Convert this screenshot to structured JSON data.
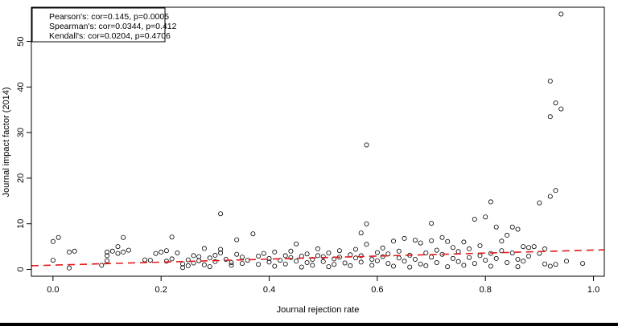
{
  "chart_data": {
    "type": "scatter",
    "xlabel": "Journal rejection rate",
    "ylabel": "Journal impact factor (2014)",
    "xlim": [
      -0.04,
      1.02
    ],
    "ylim": [
      -1.5,
      57.5
    ],
    "xticks": [
      0.0,
      0.2,
      0.4,
      0.6,
      0.8,
      1.0
    ],
    "xtick_labels": [
      "0.0",
      "0.2",
      "0.4",
      "0.6",
      "0.8",
      "1.0"
    ],
    "yticks": [
      0,
      10,
      20,
      30,
      40,
      50
    ],
    "ytick_labels": [
      "0",
      "10",
      "20",
      "30",
      "40",
      "50"
    ],
    "legend_position": "top-left",
    "legend": [
      "Pearson's: cor=0.145, p=0.0005",
      "Spearman's: cor=0.0344, p=0.412",
      "Kendall's: cor=0.0204, p=0.4706"
    ],
    "fit_line": {
      "style": "dashed",
      "color": "#e31a1c",
      "x": [
        -0.04,
        1.02
      ],
      "y": [
        0.8,
        4.3
      ]
    },
    "points": [
      [
        0.0,
        6.1
      ],
      [
        0.01,
        7.0
      ],
      [
        0.0,
        2.0
      ],
      [
        0.03,
        3.8
      ],
      [
        0.04,
        4.0
      ],
      [
        0.03,
        0.3
      ],
      [
        0.09,
        0.9
      ],
      [
        0.1,
        1.9
      ],
      [
        0.1,
        3.0
      ],
      [
        0.1,
        3.8
      ],
      [
        0.11,
        4.0
      ],
      [
        0.12,
        5.0
      ],
      [
        0.12,
        3.5
      ],
      [
        0.13,
        3.8
      ],
      [
        0.13,
        7.0
      ],
      [
        0.14,
        4.2
      ],
      [
        0.17,
        2.1
      ],
      [
        0.18,
        2.0
      ],
      [
        0.19,
        3.5
      ],
      [
        0.2,
        3.8
      ],
      [
        0.21,
        1.8
      ],
      [
        0.21,
        4.1
      ],
      [
        0.22,
        7.1
      ],
      [
        0.22,
        2.3
      ],
      [
        0.23,
        3.6
      ],
      [
        0.24,
        1.2
      ],
      [
        0.24,
        0.4
      ],
      [
        0.25,
        0.8
      ],
      [
        0.25,
        2.1
      ],
      [
        0.26,
        1.4
      ],
      [
        0.26,
        3.0
      ],
      [
        0.27,
        1.9
      ],
      [
        0.27,
        2.8
      ],
      [
        0.28,
        4.6
      ],
      [
        0.28,
        1.0
      ],
      [
        0.29,
        2.5
      ],
      [
        0.29,
        0.6
      ],
      [
        0.3,
        3.1
      ],
      [
        0.3,
        1.7
      ],
      [
        0.31,
        12.2
      ],
      [
        0.31,
        4.4
      ],
      [
        0.31,
        3.6
      ],
      [
        0.32,
        2.2
      ],
      [
        0.33,
        1.5
      ],
      [
        0.33,
        0.9
      ],
      [
        0.34,
        6.5
      ],
      [
        0.34,
        3.3
      ],
      [
        0.35,
        2.7
      ],
      [
        0.35,
        1.3
      ],
      [
        0.36,
        2.0
      ],
      [
        0.37,
        7.8
      ],
      [
        0.38,
        2.9
      ],
      [
        0.38,
        1.1
      ],
      [
        0.39,
        3.5
      ],
      [
        0.4,
        2.4
      ],
      [
        0.4,
        1.6
      ],
      [
        0.41,
        3.8
      ],
      [
        0.41,
        0.7
      ],
      [
        0.42,
        2.0
      ],
      [
        0.43,
        1.2
      ],
      [
        0.43,
        3.0
      ],
      [
        0.44,
        2.6
      ],
      [
        0.44,
        4.0
      ],
      [
        0.45,
        5.6
      ],
      [
        0.45,
        1.8
      ],
      [
        0.46,
        2.9
      ],
      [
        0.46,
        0.5
      ],
      [
        0.47,
        3.4
      ],
      [
        0.47,
        1.5
      ],
      [
        0.48,
        2.2
      ],
      [
        0.48,
        0.9
      ],
      [
        0.49,
        3.0
      ],
      [
        0.49,
        4.5
      ],
      [
        0.5,
        1.7
      ],
      [
        0.5,
        2.8
      ],
      [
        0.51,
        0.6
      ],
      [
        0.51,
        3.6
      ],
      [
        0.52,
        2.3
      ],
      [
        0.52,
        1.1
      ],
      [
        0.53,
        4.1
      ],
      [
        0.53,
        2.7
      ],
      [
        0.54,
        1.4
      ],
      [
        0.55,
        3.2
      ],
      [
        0.55,
        0.8
      ],
      [
        0.56,
        2.5
      ],
      [
        0.56,
        4.4
      ],
      [
        0.57,
        1.6
      ],
      [
        0.57,
        3.0
      ],
      [
        0.57,
        8.0
      ],
      [
        0.58,
        27.3
      ],
      [
        0.58,
        10.0
      ],
      [
        0.58,
        5.5
      ],
      [
        0.59,
        2.2
      ],
      [
        0.59,
        0.9
      ],
      [
        0.6,
        3.7
      ],
      [
        0.6,
        1.9
      ],
      [
        0.61,
        4.7
      ],
      [
        0.61,
        2.8
      ],
      [
        0.62,
        1.3
      ],
      [
        0.62,
        3.4
      ],
      [
        0.63,
        6.2
      ],
      [
        0.63,
        0.7
      ],
      [
        0.64,
        2.5
      ],
      [
        0.64,
        4.0
      ],
      [
        0.65,
        6.8
      ],
      [
        0.65,
        1.8
      ],
      [
        0.66,
        3.1
      ],
      [
        0.66,
        0.5
      ],
      [
        0.67,
        6.4
      ],
      [
        0.67,
        2.2
      ],
      [
        0.68,
        5.8
      ],
      [
        0.68,
        1.2
      ],
      [
        0.69,
        3.6
      ],
      [
        0.69,
        0.8
      ],
      [
        0.7,
        10.1
      ],
      [
        0.7,
        6.3
      ],
      [
        0.7,
        2.7
      ],
      [
        0.71,
        4.2
      ],
      [
        0.71,
        1.5
      ],
      [
        0.72,
        7.0
      ],
      [
        0.72,
        3.3
      ],
      [
        0.73,
        6.1
      ],
      [
        0.73,
        0.6
      ],
      [
        0.74,
        2.4
      ],
      [
        0.74,
        4.8
      ],
      [
        0.75,
        1.7
      ],
      [
        0.75,
        3.9
      ],
      [
        0.76,
        6.0
      ],
      [
        0.76,
        0.9
      ],
      [
        0.77,
        2.6
      ],
      [
        0.77,
        4.5
      ],
      [
        0.78,
        11.0
      ],
      [
        0.78,
        1.3
      ],
      [
        0.79,
        3.0
      ],
      [
        0.79,
        5.2
      ],
      [
        0.8,
        11.5
      ],
      [
        0.8,
        2.0
      ],
      [
        0.81,
        14.8
      ],
      [
        0.81,
        3.5
      ],
      [
        0.81,
        0.7
      ],
      [
        0.82,
        9.3
      ],
      [
        0.82,
        2.4
      ],
      [
        0.83,
        6.2
      ],
      [
        0.83,
        4.1
      ],
      [
        0.84,
        7.5
      ],
      [
        0.84,
        1.5
      ],
      [
        0.85,
        9.3
      ],
      [
        0.85,
        3.6
      ],
      [
        0.86,
        8.8
      ],
      [
        0.86,
        2.2
      ],
      [
        0.86,
        0.6
      ],
      [
        0.87,
        5.0
      ],
      [
        0.87,
        1.8
      ],
      [
        0.88,
        4.8
      ],
      [
        0.88,
        2.9
      ],
      [
        0.89,
        5.0
      ],
      [
        0.9,
        14.6
      ],
      [
        0.9,
        3.5
      ],
      [
        0.91,
        4.5
      ],
      [
        0.91,
        1.2
      ],
      [
        0.92,
        41.3
      ],
      [
        0.92,
        33.5
      ],
      [
        0.92,
        16.0
      ],
      [
        0.92,
        0.7
      ],
      [
        0.93,
        36.5
      ],
      [
        0.93,
        17.3
      ],
      [
        0.93,
        1.1
      ],
      [
        0.94,
        56.0
      ],
      [
        0.94,
        35.2
      ],
      [
        0.95,
        1.8
      ],
      [
        0.98,
        1.3
      ]
    ]
  }
}
